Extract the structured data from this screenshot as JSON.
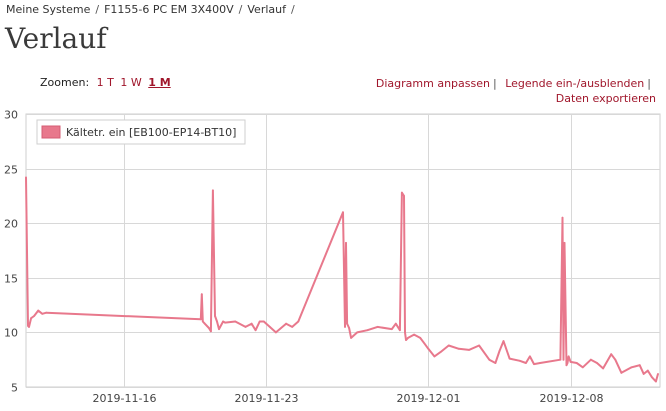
{
  "breadcrumb": {
    "items": [
      "Meine Systeme",
      "F1155-6 PC EM 3X400V",
      "Verlauf"
    ],
    "separator": "/"
  },
  "page_title": "Verlauf",
  "zoom": {
    "label": "Zoomen:",
    "options": [
      "1 T",
      "1 W",
      "1 M"
    ],
    "active": "1 M"
  },
  "actions": {
    "adjust_chart": "Diagramm anpassen",
    "toggle_legend": "Legende ein-/ausblenden",
    "export": "Daten exportieren"
  },
  "colors": {
    "link": "#a0162b",
    "series": "#e8788c",
    "grid": "#d8d8d8"
  },
  "chart_data": {
    "type": "line",
    "y_ticks": [
      "30",
      "25",
      "20",
      "15",
      "10",
      "5"
    ],
    "ylim": [
      5,
      30
    ],
    "x_ticks": [
      "2019-11-16",
      "2019-11-23",
      "2019-12-01",
      "2019-12-08"
    ],
    "x_tick_dates": [
      16,
      23,
      31,
      38
    ],
    "xlim": [
      11.2,
      42.4
    ],
    "x_unit_note": "",
    "grid": true,
    "legend_position": "top-left",
    "series": [
      {
        "name": "Kältetr. ein [EB100-EP14-BT10]",
        "x": [
          11.2,
          11.3,
          11.35,
          11.45,
          11.6,
          11.8,
          12.0,
          12.2,
          19.8,
          19.85,
          19.9,
          20.0,
          20.2,
          20.3,
          20.4,
          20.5,
          20.6,
          20.7,
          20.9,
          21.0,
          21.5,
          22.0,
          22.3,
          22.5,
          22.7,
          22.9,
          23.2,
          23.5,
          24.0,
          24.3,
          24.6,
          26.8,
          26.9,
          26.95,
          27.0,
          27.1,
          27.2,
          27.5,
          28.0,
          28.5,
          29.2,
          29.4,
          29.6,
          29.7,
          29.8,
          29.85,
          29.9,
          30.0,
          30.3,
          30.6,
          30.8,
          31.0,
          31.3,
          31.6,
          32.0,
          32.5,
          33.0,
          33.5,
          34.0,
          34.3,
          34.5,
          34.7,
          35.0,
          35.5,
          35.8,
          36.0,
          36.2,
          36.5,
          37.5,
          37.6,
          37.65,
          37.7,
          37.8,
          37.85,
          37.9,
          38.0,
          38.3,
          38.6,
          39.0,
          39.3,
          39.6,
          40.0,
          40.2,
          40.5,
          41.0,
          41.4,
          41.6,
          41.8,
          42.0,
          42.2,
          42.3
        ],
        "values": [
          24.2,
          10.6,
          10.5,
          11.3,
          11.5,
          12.0,
          11.7,
          11.8,
          11.2,
          13.5,
          11.0,
          10.8,
          10.4,
          10.1,
          23.0,
          11.5,
          11.0,
          10.3,
          11.0,
          10.9,
          11.0,
          10.5,
          10.8,
          10.2,
          11.0,
          11.0,
          10.5,
          10.0,
          10.8,
          10.5,
          11.0,
          21.0,
          10.5,
          18.2,
          10.8,
          10.4,
          9.5,
          10.0,
          10.2,
          10.5,
          10.3,
          10.8,
          10.2,
          22.8,
          22.5,
          10.0,
          9.3,
          9.5,
          9.8,
          9.5,
          9.0,
          8.5,
          7.8,
          8.2,
          8.8,
          8.5,
          8.4,
          8.8,
          7.5,
          7.2,
          8.3,
          9.2,
          7.6,
          7.4,
          7.2,
          7.8,
          7.1,
          7.2,
          7.5,
          20.5,
          7.5,
          18.2,
          7.0,
          7.2,
          7.8,
          7.3,
          7.2,
          6.8,
          7.5,
          7.2,
          6.7,
          8.0,
          7.5,
          6.3,
          6.8,
          7.0,
          6.2,
          6.5,
          5.9,
          5.5,
          6.2
        ]
      }
    ]
  }
}
